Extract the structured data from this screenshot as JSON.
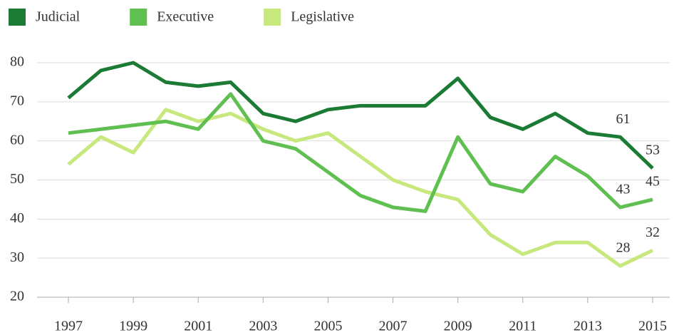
{
  "chart_data": {
    "type": "line",
    "x": [
      1997,
      1998,
      1999,
      2000,
      2001,
      2002,
      2003,
      2004,
      2005,
      2006,
      2007,
      2008,
      2009,
      2010,
      2011,
      2012,
      2013,
      2014,
      2015
    ],
    "series": [
      {
        "name": "Judicial",
        "color": "#1b7b34",
        "values": [
          71,
          78,
          80,
          75,
          74,
          75,
          67,
          65,
          68,
          69,
          69,
          69,
          76,
          66,
          63,
          67,
          62,
          61,
          53
        ]
      },
      {
        "name": "Executive",
        "color": "#5fbf50",
        "values": [
          62,
          63,
          64,
          65,
          63,
          72,
          60,
          58,
          52,
          46,
          43,
          42,
          61,
          49,
          47,
          56,
          51,
          43,
          45
        ]
      },
      {
        "name": "Legislative",
        "color": "#c6e87c",
        "values": [
          54,
          61,
          57,
          68,
          65,
          67,
          63,
          60,
          62,
          56,
          50,
          47,
          45,
          36,
          31,
          34,
          34,
          28,
          32
        ]
      }
    ],
    "xlim": [
      1997,
      2015
    ],
    "xticks": [
      1997,
      1999,
      2001,
      2003,
      2005,
      2007,
      2009,
      2011,
      2013,
      2015
    ],
    "ylim": [
      20,
      80
    ],
    "yticks": [
      20,
      30,
      40,
      50,
      60,
      70,
      80
    ],
    "grid": true,
    "legend": "top-left"
  }
}
